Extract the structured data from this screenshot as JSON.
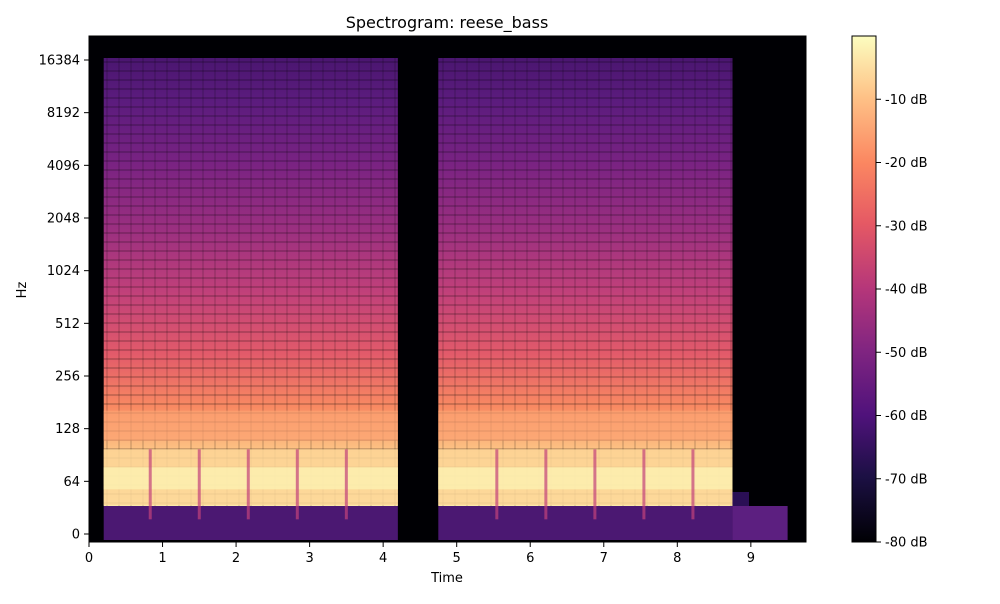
{
  "chart_data": {
    "type": "heatmap",
    "title": "Spectrogram: reese_bass",
    "xlabel": "Time",
    "ylabel": "Hz",
    "xlim": [
      0,
      9.75
    ],
    "x_ticks": [
      0,
      1,
      2,
      3,
      4,
      5,
      6,
      7,
      8,
      9
    ],
    "y_scale": "log2",
    "y_ticks": [
      "0",
      "64",
      "128",
      "256",
      "512",
      "1024",
      "2048",
      "4096",
      "8192",
      "16384"
    ],
    "colorbar": {
      "colormap": "magma",
      "range_db": [
        -80,
        0
      ],
      "ticks": [
        "-10 dB",
        "-20 dB",
        "-30 dB",
        "-40 dB",
        "-50 dB",
        "-60 dB",
        "-70 dB",
        "-80 dB"
      ]
    },
    "segments": [
      {
        "start": 0.2,
        "end": 4.2,
        "fundamental_hz": 64
      },
      {
        "start": 4.75,
        "end": 8.75,
        "fundamental_hz": 64
      }
    ],
    "tail": {
      "start": 8.75,
      "end": 9.5
    }
  }
}
